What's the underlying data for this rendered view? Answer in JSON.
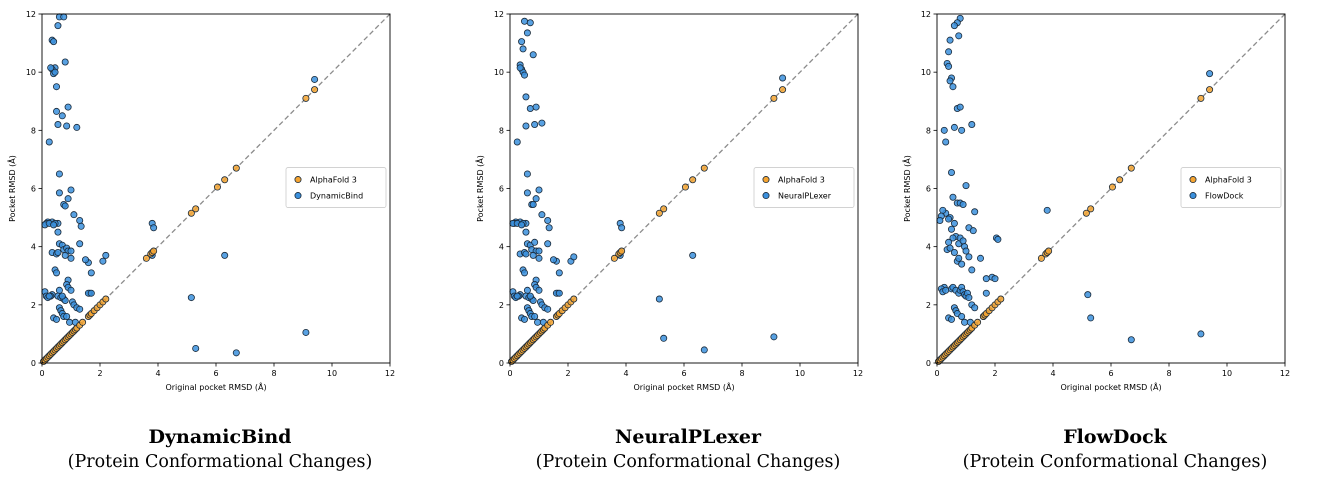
{
  "colors": {
    "af3": "#f5a431",
    "method": "#3b90dd",
    "edge": "#1a2a3a",
    "diag": "#8c8c8c",
    "legend_edge": "#cccccc"
  },
  "panels": [
    {
      "caption_title": "DynamicBind",
      "caption_subtitle": "(Protein Conformational Changes)"
    },
    {
      "caption_title": "NeuralPLexer",
      "caption_subtitle": "(Protein Conformational Changes)"
    },
    {
      "caption_title": "FlowDock",
      "caption_subtitle": "(Protein Conformational Changes)"
    }
  ],
  "chart_data": [
    {
      "type": "scatter",
      "xlabel": "Original pocket RMSD (Å)",
      "ylabel": "Pocket RMSD (Å)",
      "xlim": [
        0,
        12
      ],
      "ylim": [
        0,
        12
      ],
      "xticks": [
        0,
        2,
        4,
        6,
        8,
        10,
        12
      ],
      "yticks": [
        0,
        2,
        4,
        6,
        8,
        10,
        12
      ],
      "diagonal": true,
      "legend_placement": "center-right",
      "series": [
        {
          "name": "AlphaFold 3",
          "color": "#f5a431",
          "x": [
            0.05,
            0.1,
            0.15,
            0.2,
            0.25,
            0.3,
            0.35,
            0.4,
            0.45,
            0.5,
            0.55,
            0.6,
            0.65,
            0.7,
            0.75,
            0.8,
            0.85,
            0.9,
            0.95,
            1.0,
            1.05,
            1.1,
            1.15,
            1.2,
            1.3,
            1.4,
            1.6,
            1.65,
            1.7,
            1.8,
            1.9,
            2.0,
            2.1,
            2.2,
            3.6,
            3.75,
            3.8,
            3.85,
            5.15,
            5.3,
            6.05,
            6.3,
            6.7,
            9.1,
            9.4
          ],
          "y": [
            0.05,
            0.1,
            0.15,
            0.2,
            0.25,
            0.3,
            0.35,
            0.4,
            0.45,
            0.5,
            0.55,
            0.6,
            0.65,
            0.7,
            0.75,
            0.8,
            0.85,
            0.9,
            0.95,
            1.0,
            1.05,
            1.1,
            1.15,
            1.2,
            1.3,
            1.4,
            1.6,
            1.65,
            1.7,
            1.8,
            1.9,
            2.0,
            2.1,
            2.2,
            3.6,
            3.75,
            3.8,
            3.85,
            5.15,
            5.3,
            6.05,
            6.3,
            6.7,
            9.1,
            9.4
          ]
        },
        {
          "name": "DynamicBind",
          "color": "#3b90dd",
          "x": [
            0.6,
            0.75,
            0.55,
            0.35,
            0.4,
            0.45,
            0.35,
            0.3,
            0.4,
            0.45,
            0.5,
            0.8,
            0.5,
            0.7,
            0.9,
            0.55,
            0.85,
            0.25,
            1.2,
            0.6,
            1.0,
            0.9,
            0.6,
            0.75,
            0.8,
            1.1,
            1.3,
            0.55,
            0.35,
            0.2,
            0.15,
            0.1,
            0.25,
            0.45,
            0.4,
            0.55,
            1.35,
            0.6,
            0.7,
            0.75,
            0.85,
            0.9,
            1.3,
            1.6,
            1.0,
            0.35,
            0.5,
            0.55,
            0.8,
            1.0,
            1.5,
            1.7,
            2.1,
            2.2,
            1.65,
            0.9,
            0.85,
            0.45,
            0.5,
            0.6,
            0.35,
            0.3,
            0.55,
            0.65,
            0.75,
            0.8,
            0.7,
            0.1,
            0.15,
            0.2,
            0.25,
            0.9,
            1.0,
            1.05,
            1.1,
            1.2,
            1.3,
            0.6,
            0.65,
            0.7,
            0.75,
            1.6,
            1.7,
            0.4,
            0.5,
            0.85,
            0.95,
            1.15,
            3.8,
            3.85,
            3.8,
            6.3,
            5.15,
            5.3,
            6.7,
            9.1,
            9.4
          ],
          "y": [
            11.9,
            11.9,
            11.6,
            11.1,
            11.05,
            10.15,
            10.1,
            10.15,
            9.95,
            10.0,
            9.5,
            10.35,
            8.65,
            8.5,
            8.8,
            8.2,
            8.15,
            7.6,
            8.1,
            6.5,
            5.95,
            5.65,
            5.85,
            5.45,
            5.4,
            5.1,
            4.9,
            4.8,
            4.85,
            4.85,
            4.8,
            4.75,
            4.8,
            4.8,
            4.75,
            4.5,
            4.7,
            4.1,
            4.05,
            3.9,
            3.95,
            3.85,
            4.1,
            3.45,
            3.85,
            3.8,
            3.75,
            3.8,
            3.7,
            3.6,
            3.55,
            3.1,
            3.5,
            3.7,
            2.4,
            2.85,
            2.7,
            3.2,
            3.1,
            2.5,
            2.35,
            2.3,
            2.3,
            2.25,
            2.2,
            2.15,
            2.3,
            2.45,
            2.3,
            2.25,
            2.3,
            2.6,
            2.5,
            2.1,
            2.0,
            1.9,
            1.85,
            1.9,
            1.8,
            1.7,
            1.6,
            2.4,
            2.4,
            1.55,
            1.5,
            1.6,
            1.4,
            1.4,
            4.8,
            4.65,
            3.7,
            3.7,
            2.25,
            0.5,
            0.35,
            1.05,
            9.75
          ]
        }
      ]
    },
    {
      "type": "scatter",
      "xlabel": "Original pocket RMSD (Å)",
      "ylabel": "Pocket RMSD (Å)",
      "xlim": [
        0,
        12
      ],
      "ylim": [
        0,
        12
      ],
      "xticks": [
        0,
        2,
        4,
        6,
        8,
        10,
        12
      ],
      "yticks": [
        0,
        2,
        4,
        6,
        8,
        10,
        12
      ],
      "diagonal": true,
      "legend_placement": "center-right",
      "series": [
        {
          "name": "AlphaFold 3",
          "color": "#f5a431",
          "x": [
            0.05,
            0.1,
            0.15,
            0.2,
            0.25,
            0.3,
            0.35,
            0.4,
            0.45,
            0.5,
            0.55,
            0.6,
            0.65,
            0.7,
            0.75,
            0.8,
            0.85,
            0.9,
            0.95,
            1.0,
            1.05,
            1.1,
            1.15,
            1.2,
            1.3,
            1.4,
            1.6,
            1.65,
            1.7,
            1.8,
            1.9,
            2.0,
            2.1,
            2.2,
            3.6,
            3.75,
            3.8,
            3.85,
            5.15,
            5.3,
            6.05,
            6.3,
            6.7,
            9.1,
            9.4
          ],
          "y": [
            0.05,
            0.1,
            0.15,
            0.2,
            0.25,
            0.3,
            0.35,
            0.4,
            0.45,
            0.5,
            0.55,
            0.6,
            0.65,
            0.7,
            0.75,
            0.8,
            0.85,
            0.9,
            0.95,
            1.0,
            1.05,
            1.1,
            1.15,
            1.2,
            1.3,
            1.4,
            1.6,
            1.65,
            1.7,
            1.8,
            1.9,
            2.0,
            2.1,
            2.2,
            3.6,
            3.75,
            3.8,
            3.85,
            5.15,
            5.3,
            6.05,
            6.3,
            6.7,
            9.1,
            9.4
          ]
        },
        {
          "name": "NeuralPLexer",
          "color": "#3b90dd",
          "x": [
            0.5,
            0.7,
            0.6,
            0.4,
            0.45,
            0.35,
            0.4,
            0.45,
            0.35,
            0.5,
            0.8,
            0.55,
            0.7,
            0.9,
            0.55,
            0.85,
            0.25,
            1.1,
            0.6,
            1.0,
            0.9,
            0.6,
            0.75,
            0.8,
            1.1,
            1.3,
            0.55,
            0.35,
            0.2,
            0.15,
            0.1,
            0.25,
            0.45,
            0.4,
            0.55,
            1.35,
            0.6,
            0.7,
            0.75,
            0.85,
            0.9,
            1.3,
            1.6,
            1.0,
            0.35,
            0.5,
            0.55,
            0.8,
            1.0,
            1.5,
            1.7,
            2.1,
            2.2,
            1.65,
            0.9,
            0.85,
            0.45,
            0.5,
            0.6,
            0.35,
            0.3,
            0.55,
            0.65,
            0.75,
            0.8,
            0.7,
            0.1,
            0.15,
            0.2,
            0.25,
            0.9,
            1.0,
            1.05,
            1.1,
            1.2,
            1.3,
            0.6,
            0.65,
            0.7,
            0.75,
            1.6,
            1.7,
            0.4,
            0.5,
            0.85,
            0.95,
            1.15,
            3.8,
            3.85,
            3.8,
            6.3,
            5.15,
            5.3,
            6.7,
            9.1,
            9.4
          ],
          "y": [
            11.75,
            11.7,
            11.35,
            11.05,
            10.8,
            10.25,
            10.1,
            10.0,
            10.15,
            9.9,
            10.6,
            9.15,
            8.75,
            8.8,
            8.15,
            8.2,
            7.6,
            8.25,
            6.5,
            5.95,
            5.65,
            5.85,
            5.45,
            5.45,
            5.1,
            4.9,
            4.8,
            4.85,
            4.85,
            4.8,
            4.8,
            4.8,
            4.8,
            4.75,
            4.5,
            4.65,
            4.1,
            4.05,
            3.9,
            4.15,
            3.85,
            4.1,
            3.5,
            3.85,
            3.75,
            3.8,
            3.75,
            3.7,
            3.6,
            3.55,
            3.1,
            3.5,
            3.65,
            2.4,
            2.85,
            2.7,
            3.2,
            3.1,
            2.5,
            2.35,
            2.3,
            2.3,
            2.25,
            2.2,
            2.15,
            2.3,
            2.45,
            2.3,
            2.25,
            2.3,
            2.6,
            2.5,
            2.1,
            2.0,
            1.9,
            1.85,
            1.9,
            1.8,
            1.7,
            1.6,
            2.4,
            2.4,
            1.55,
            1.5,
            1.6,
            1.4,
            1.4,
            4.8,
            4.65,
            3.7,
            3.7,
            2.2,
            0.85,
            0.45,
            0.9,
            9.8
          ]
        }
      ]
    },
    {
      "type": "scatter",
      "xlabel": "Original pocket RMSD (Å)",
      "ylabel": "Pocket RMSD (Å)",
      "xlim": [
        0,
        12
      ],
      "ylim": [
        0,
        12
      ],
      "xticks": [
        0,
        2,
        4,
        6,
        8,
        10,
        12
      ],
      "yticks": [
        0,
        2,
        4,
        6,
        8,
        10,
        12
      ],
      "diagonal": true,
      "legend_placement": "center-right",
      "series": [
        {
          "name": "AlphaFold 3",
          "color": "#f5a431",
          "x": [
            0.05,
            0.1,
            0.15,
            0.2,
            0.25,
            0.3,
            0.35,
            0.4,
            0.45,
            0.5,
            0.55,
            0.6,
            0.65,
            0.7,
            0.75,
            0.8,
            0.85,
            0.9,
            0.95,
            1.0,
            1.05,
            1.1,
            1.15,
            1.2,
            1.3,
            1.4,
            1.6,
            1.65,
            1.7,
            1.8,
            1.9,
            2.0,
            2.1,
            2.2,
            3.6,
            3.75,
            3.8,
            3.85,
            5.15,
            5.3,
            6.05,
            6.3,
            6.7,
            9.1,
            9.4
          ],
          "y": [
            0.05,
            0.1,
            0.15,
            0.2,
            0.25,
            0.3,
            0.35,
            0.4,
            0.45,
            0.5,
            0.55,
            0.6,
            0.65,
            0.7,
            0.75,
            0.8,
            0.85,
            0.9,
            0.95,
            1.0,
            1.05,
            1.1,
            1.15,
            1.2,
            1.3,
            1.4,
            1.6,
            1.65,
            1.7,
            1.8,
            1.9,
            2.0,
            2.1,
            2.2,
            3.6,
            3.75,
            3.8,
            3.85,
            5.15,
            5.3,
            6.05,
            6.3,
            6.7,
            9.1,
            9.4
          ]
        },
        {
          "name": "FlowDock",
          "color": "#3b90dd",
          "x": [
            0.8,
            0.7,
            0.6,
            0.45,
            0.4,
            0.75,
            0.35,
            0.4,
            0.5,
            0.45,
            0.55,
            0.7,
            0.8,
            0.3,
            0.25,
            0.6,
            0.85,
            0.5,
            0.55,
            0.7,
            1.0,
            1.2,
            0.8,
            0.9,
            0.3,
            0.2,
            0.15,
            0.1,
            0.45,
            0.4,
            0.6,
            0.5,
            1.1,
            1.3,
            1.25,
            0.65,
            0.55,
            0.75,
            0.8,
            0.9,
            0.95,
            1.0,
            1.1,
            2.05,
            2.1,
            3.8,
            0.4,
            0.35,
            0.45,
            0.6,
            0.7,
            0.75,
            0.85,
            1.2,
            1.5,
            1.7,
            1.9,
            2.0,
            0.25,
            0.15,
            0.2,
            0.3,
            0.5,
            0.55,
            0.65,
            0.75,
            0.8,
            0.85,
            0.9,
            0.95,
            1.0,
            1.05,
            1.1,
            1.2,
            1.3,
            0.6,
            0.65,
            0.7,
            1.6,
            1.7,
            0.4,
            0.5,
            0.85,
            0.95,
            1.15,
            5.2,
            5.3,
            6.7,
            9.1,
            9.4
          ],
          "y": [
            11.85,
            11.7,
            11.6,
            11.1,
            10.7,
            11.25,
            10.3,
            10.2,
            9.8,
            9.7,
            9.5,
            8.75,
            8.8,
            7.6,
            8.0,
            8.1,
            8.0,
            6.55,
            5.7,
            5.5,
            6.1,
            8.2,
            5.5,
            5.45,
            5.15,
            5.25,
            5.05,
            4.9,
            5.0,
            4.95,
            4.8,
            4.6,
            4.65,
            5.2,
            4.55,
            4.35,
            4.3,
            4.1,
            4.3,
            4.2,
            4.0,
            3.85,
            3.65,
            4.3,
            4.25,
            5.25,
            4.15,
            3.9,
            3.95,
            3.8,
            3.5,
            3.6,
            3.4,
            3.2,
            3.6,
            2.9,
            2.95,
            2.9,
            2.6,
            2.55,
            2.45,
            2.5,
            2.55,
            2.6,
            2.5,
            2.4,
            2.5,
            2.6,
            2.45,
            2.35,
            2.3,
            2.4,
            2.25,
            2.0,
            1.9,
            1.9,
            1.8,
            1.7,
            1.6,
            2.4,
            1.55,
            1.5,
            1.6,
            1.4,
            1.4,
            2.35,
            1.55,
            0.8,
            1.0,
            9.95
          ]
        }
      ]
    }
  ]
}
